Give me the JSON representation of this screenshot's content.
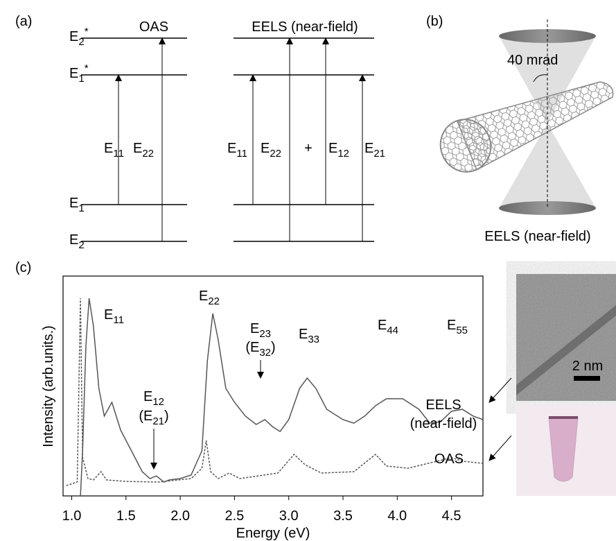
{
  "panel_labels": [
    "(a)",
    "(b)",
    "(c)"
  ],
  "panel_a": {
    "left_title": "OAS",
    "right_title": "EELS (near-field)",
    "levels": [
      [
        {
          "t": "E"
        },
        {
          "sub": "2"
        },
        {
          "sup": "*"
        }
      ],
      [
        {
          "t": "E"
        },
        {
          "sub": "1"
        },
        {
          "sup": "*"
        }
      ],
      [
        {
          "t": "E"
        },
        {
          "sub": "1"
        }
      ],
      [
        {
          "t": "E"
        },
        {
          "sub": "2"
        }
      ]
    ],
    "transitions_left": [
      [
        {
          "t": "E"
        },
        {
          "sub": "11"
        }
      ],
      [
        {
          "t": "E"
        },
        {
          "sub": "22"
        }
      ]
    ],
    "transitions_right": [
      [
        {
          "t": "E"
        },
        {
          "sub": "11"
        }
      ],
      [
        {
          "t": "E"
        },
        {
          "sub": "22"
        }
      ],
      [
        {
          "t": "E"
        },
        {
          "sub": "12"
        }
      ],
      [
        {
          "t": "E"
        },
        {
          "sub": "21"
        }
      ]
    ],
    "plus": "+"
  },
  "panel_b": {
    "angle": "40 mrad",
    "caption": "EELS (near-field)"
  },
  "scale_bar": "2 nm",
  "chart_data": {
    "type": "line",
    "x_label": "Energy (eV)",
    "y_label": "Intensity (arb.units.)",
    "xlim": [
      0.92,
      4.79
    ],
    "xticks": [
      {
        "value": 1,
        "label": "1.0"
      },
      1.5,
      {
        "value": 2,
        "label": "2.0"
      },
      2.5,
      {
        "value": 3,
        "label": "3.0"
      },
      3.5,
      {
        "value": 4,
        "label": "4.0"
      },
      4.5
    ],
    "ylim": [
      0,
      100
    ],
    "series": [
      {
        "label": [
          "EELS",
          "(near-field)"
        ],
        "color": "#555555",
        "dash": false,
        "x": [
          1.08,
          1.1,
          1.13,
          1.16,
          1.2,
          1.25,
          1.3,
          1.37,
          1.45,
          1.55,
          1.65,
          1.72,
          1.78,
          1.85,
          1.9,
          2.0,
          2.1,
          2.2,
          2.25,
          2.3,
          2.35,
          2.42,
          2.5,
          2.6,
          2.7,
          2.78,
          2.85,
          2.92,
          3.0,
          3.1,
          3.17,
          3.25,
          3.35,
          3.5,
          3.6,
          3.7,
          3.8,
          3.9,
          4.05,
          4.2,
          4.3,
          4.4,
          4.5,
          4.6,
          4.7,
          4.79
        ],
        "values": [
          0,
          20.5,
          67.8,
          89.9,
          77.3,
          48.9,
          36.3,
          42.6,
          30,
          20.5,
          11,
          7.9,
          9.1,
          6.3,
          7.3,
          7.9,
          9.5,
          20.5,
          61.5,
          83,
          71,
          48.9,
          42.6,
          36.3,
          32.5,
          34.7,
          31.5,
          29.3,
          34.7,
          48.9,
          53.6,
          48.9,
          39.4,
          34.7,
          33.1,
          36.3,
          41,
          44.2,
          44.2,
          39.4,
          33.1,
          33.8,
          38.5,
          39.4,
          36.3,
          34.7
        ]
      },
      {
        "label": [
          "OAS"
        ],
        "color": "#555555",
        "dash": true,
        "x": [
          0.95,
          1.05,
          1.08,
          1.1,
          1.15,
          1.2,
          1.27,
          1.32,
          1.5,
          1.8,
          2.1,
          2.2,
          2.24,
          2.28,
          2.35,
          2.45,
          2.55,
          2.9,
          3.05,
          3.15,
          3.3,
          3.6,
          3.8,
          3.9,
          4.1,
          4.5,
          4.6,
          4.79
        ],
        "values": [
          4.7,
          6.3,
          89.9,
          17.4,
          7.9,
          7.3,
          11,
          7.3,
          6.6,
          6.3,
          7.9,
          12.6,
          25.2,
          11,
          7.9,
          10.4,
          7.9,
          10.4,
          18.9,
          14.2,
          10.4,
          11,
          18.9,
          13.6,
          12.6,
          17.4,
          15.8,
          14.8
        ]
      }
    ],
    "peak_labels": [
      [
        [
          {
            "t": "E"
          },
          {
            "sub": "11"
          }
        ]
      ],
      [
        [
          {
            "t": "E"
          },
          {
            "sub": "12"
          }
        ],
        [
          {
            "t": "(E"
          },
          {
            "sub": "21"
          },
          {
            "t": ")"
          }
        ]
      ],
      [
        [
          {
            "t": "E"
          },
          {
            "sub": "22"
          }
        ]
      ],
      [
        [
          {
            "t": "E"
          },
          {
            "sub": "23"
          }
        ],
        [
          {
            "t": "(E"
          },
          {
            "sub": "32"
          },
          {
            "t": ")"
          }
        ]
      ],
      [
        [
          {
            "t": "E"
          },
          {
            "sub": "33"
          }
        ]
      ],
      [
        [
          {
            "t": "E"
          },
          {
            "sub": "44"
          }
        ]
      ],
      [
        [
          {
            "t": "E"
          },
          {
            "sub": "55"
          }
        ]
      ]
    ]
  }
}
